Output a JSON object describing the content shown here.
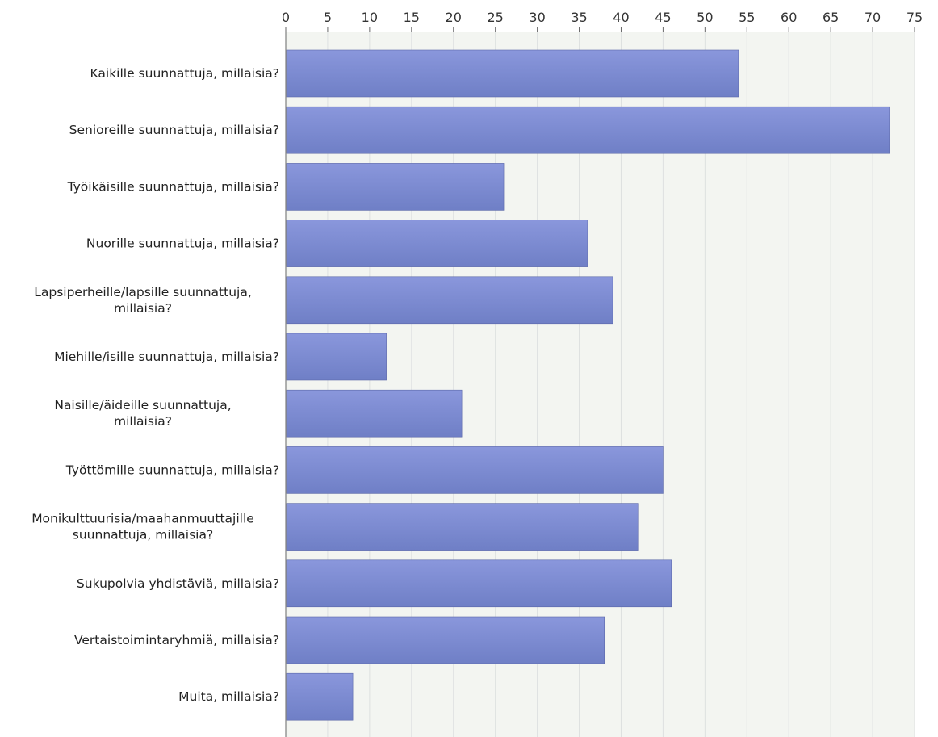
{
  "chart_data": {
    "type": "bar",
    "orientation": "horizontal",
    "categories": [
      [
        "Kaikille suunnattuja, millaisia?"
      ],
      [
        "Senioreille suunnattuja, millaisia?"
      ],
      [
        "Työikäisille suunnattuja, millaisia?"
      ],
      [
        "Nuorille suunnattuja, millaisia?"
      ],
      [
        "Lapsiperheille/lapsille suunnattuja,",
        "millaisia?"
      ],
      [
        "Miehille/isille suunnattuja, millaisia?"
      ],
      [
        "Naisille/äideille suunnattuja,",
        "millaisia?"
      ],
      [
        "Työttömille suunnattuja, millaisia?"
      ],
      [
        "Monikulttuurisia/maahanmuuttajille",
        "suunnattuja, millaisia?"
      ],
      [
        "Sukupolvia yhdistäviä, millaisia?"
      ],
      [
        "Vertaistoimintaryhmiä, millaisia?"
      ],
      [
        "Muita, millaisia?"
      ]
    ],
    "values": [
      54,
      72,
      26,
      36,
      39,
      12,
      21,
      45,
      42,
      46,
      38,
      8
    ],
    "xlim": [
      0,
      75
    ],
    "ticks": [
      0,
      5,
      10,
      15,
      20,
      25,
      30,
      35,
      40,
      45,
      50,
      55,
      60,
      65,
      70,
      75
    ],
    "tick_position": "top",
    "grid": true,
    "colors": {
      "bar_top": "#8a97dc",
      "bar_bottom": "#6f7fc6",
      "bar_edge": "#5b67a8",
      "plot_bg": "#f3f5f1",
      "grid": "#dde0e0"
    },
    "title": "",
    "xlabel": "",
    "ylabel": ""
  }
}
